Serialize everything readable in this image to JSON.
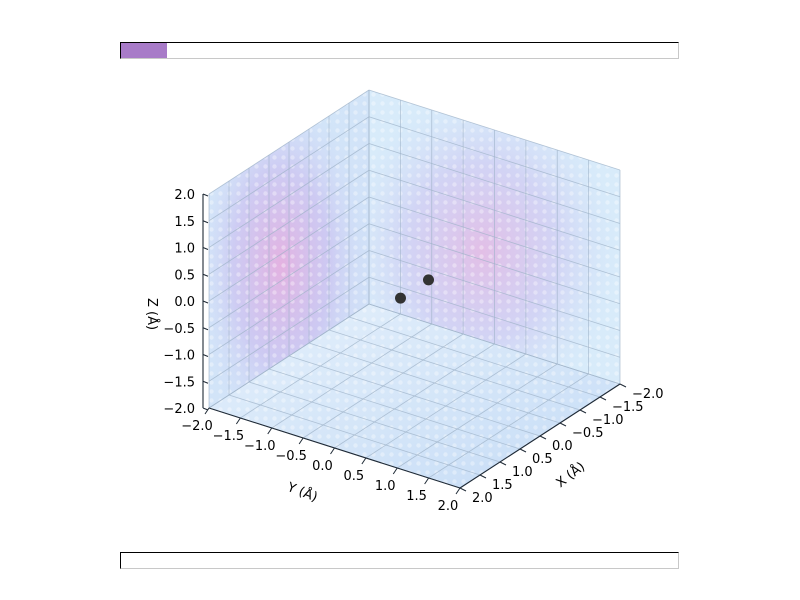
{
  "top_progress": {
    "fraction": 0.083,
    "color": "#a87bc8"
  },
  "bottom_progress": {
    "fraction": 0.0,
    "color": "#a87bc8"
  },
  "chart_data": {
    "type": "scatter",
    "projection": "3d",
    "xlabel": "X (Å)",
    "ylabel": "Y (Å)",
    "zlabel": "Z (Å)",
    "xlim": [
      -2.0,
      2.0
    ],
    "ylim": [
      -2.0,
      2.0
    ],
    "zlim": [
      -2.0,
      2.0
    ],
    "xticks": [
      "−2.0",
      "−1.5",
      "−1.0",
      "−0.5",
      "0.0",
      "0.5",
      "1.0",
      "1.5",
      "2.0"
    ],
    "yticks": [
      "−2.0",
      "−1.5",
      "−1.0",
      "−0.5",
      "0.0",
      "0.5",
      "1.0",
      "1.5",
      "2.0"
    ],
    "zticks": [
      "−2.0",
      "−1.5",
      "−1.0",
      "−0.5",
      "0.0",
      "0.5",
      "1.0",
      "1.5",
      "2.0"
    ],
    "grid": true,
    "points": [
      {
        "x": -0.35,
        "y": 0.0,
        "z": 0.0
      },
      {
        "x": 0.35,
        "y": 0.0,
        "z": 0.0
      }
    ],
    "point_color": "#333333",
    "density_colors": [
      "#c8e4f8",
      "#e8b0e0",
      "#a8c8f0"
    ]
  }
}
